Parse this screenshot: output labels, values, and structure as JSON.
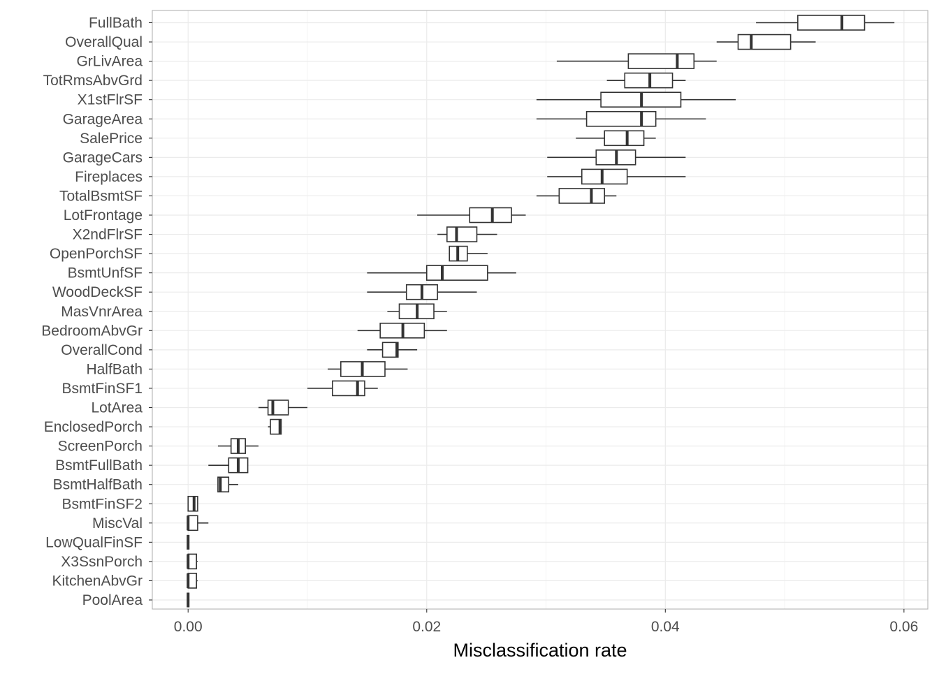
{
  "chart_data": {
    "type": "boxplot",
    "orientation": "horizontal",
    "xlabel": "Misclassification rate",
    "ylabel": "",
    "title": "",
    "xlim": [
      -0.003,
      0.062
    ],
    "xticks": [
      0.0,
      0.02,
      0.04,
      0.06
    ],
    "xtick_labels": [
      "0.00",
      "0.02",
      "0.04",
      "0.06"
    ],
    "grid": true,
    "legend": "none",
    "colors": {
      "box_stroke": "#333333",
      "grid_major": "#ebebeb",
      "grid_minor": "#f2f2f2",
      "panel_border": "#b3b3b3",
      "tick_label": "#4d4d4d",
      "axis_title": "#000000"
    },
    "categories": [
      "FullBath",
      "OverallQual",
      "GrLivArea",
      "TotRmsAbvGrd",
      "X1stFlrSF",
      "GarageArea",
      "SalePrice",
      "GarageCars",
      "Fireplaces",
      "TotalBsmtSF",
      "LotFrontage",
      "X2ndFlrSF",
      "OpenPorchSF",
      "BsmtUnfSF",
      "WoodDeckSF",
      "MasVnrArea",
      "BedroomAbvGr",
      "OverallCond",
      "HalfBath",
      "BsmtFinSF1",
      "LotArea",
      "EnclosedPorch",
      "ScreenPorch",
      "BsmtFullBath",
      "BsmtHalfBath",
      "BsmtFinSF2",
      "MiscVal",
      "LowQualFinSF",
      "X3SsnPorch",
      "KitchenAbvGr",
      "PoolArea"
    ],
    "boxes": [
      {
        "category": "FullBath",
        "whisker_low": 0.0476,
        "q1": 0.0511,
        "median": 0.0548,
        "q3": 0.0567,
        "whisker_high": 0.0592
      },
      {
        "category": "OverallQual",
        "whisker_low": 0.0443,
        "q1": 0.0461,
        "median": 0.0472,
        "q3": 0.0505,
        "whisker_high": 0.0526
      },
      {
        "category": "GrLivArea",
        "whisker_low": 0.0309,
        "q1": 0.0369,
        "median": 0.041,
        "q3": 0.0424,
        "whisker_high": 0.0443
      },
      {
        "category": "TotRmsAbvGrd",
        "whisker_low": 0.0351,
        "q1": 0.0366,
        "median": 0.0387,
        "q3": 0.0406,
        "whisker_high": 0.0417
      },
      {
        "category": "X1stFlrSF",
        "whisker_low": 0.0292,
        "q1": 0.0346,
        "median": 0.038,
        "q3": 0.0413,
        "whisker_high": 0.0459
      },
      {
        "category": "GarageArea",
        "whisker_low": 0.0292,
        "q1": 0.0334,
        "median": 0.038,
        "q3": 0.0392,
        "whisker_high": 0.0434
      },
      {
        "category": "SalePrice",
        "whisker_low": 0.0325,
        "q1": 0.0349,
        "median": 0.0368,
        "q3": 0.0382,
        "whisker_high": 0.0392
      },
      {
        "category": "GarageCars",
        "whisker_low": 0.0301,
        "q1": 0.0342,
        "median": 0.0359,
        "q3": 0.0375,
        "whisker_high": 0.0417
      },
      {
        "category": "Fireplaces",
        "whisker_low": 0.0301,
        "q1": 0.033,
        "median": 0.0347,
        "q3": 0.0368,
        "whisker_high": 0.0417
      },
      {
        "category": "TotalBsmtSF",
        "whisker_low": 0.0292,
        "q1": 0.0311,
        "median": 0.0338,
        "q3": 0.0349,
        "whisker_high": 0.0359
      },
      {
        "category": "LotFrontage",
        "whisker_low": 0.0192,
        "q1": 0.0236,
        "median": 0.0255,
        "q3": 0.0271,
        "whisker_high": 0.0283
      },
      {
        "category": "X2ndFlrSF",
        "whisker_low": 0.0209,
        "q1": 0.0217,
        "median": 0.0225,
        "q3": 0.0242,
        "whisker_high": 0.0259
      },
      {
        "category": "OpenPorchSF",
        "whisker_low": 0.0219,
        "q1": 0.0219,
        "median": 0.0226,
        "q3": 0.0234,
        "whisker_high": 0.0251
      },
      {
        "category": "BsmtUnfSF",
        "whisker_low": 0.015,
        "q1": 0.02,
        "median": 0.0213,
        "q3": 0.0251,
        "whisker_high": 0.0275
      },
      {
        "category": "WoodDeckSF",
        "whisker_low": 0.015,
        "q1": 0.0183,
        "median": 0.0196,
        "q3": 0.0209,
        "whisker_high": 0.0242
      },
      {
        "category": "MasVnrArea",
        "whisker_low": 0.0167,
        "q1": 0.0177,
        "median": 0.0192,
        "q3": 0.0206,
        "whisker_high": 0.0217
      },
      {
        "category": "BedroomAbvGr",
        "whisker_low": 0.0142,
        "q1": 0.0161,
        "median": 0.018,
        "q3": 0.0198,
        "whisker_high": 0.0217
      },
      {
        "category": "OverallCond",
        "whisker_low": 0.015,
        "q1": 0.0163,
        "median": 0.0175,
        "q3": 0.0176,
        "whisker_high": 0.0192
      },
      {
        "category": "HalfBath",
        "whisker_low": 0.0117,
        "q1": 0.0128,
        "median": 0.0146,
        "q3": 0.0165,
        "whisker_high": 0.0184
      },
      {
        "category": "BsmtFinSF1",
        "whisker_low": 0.01,
        "q1": 0.0121,
        "median": 0.0142,
        "q3": 0.0148,
        "whisker_high": 0.0159
      },
      {
        "category": "LotArea",
        "whisker_low": 0.0059,
        "q1": 0.0067,
        "median": 0.0071,
        "q3": 0.0084,
        "whisker_high": 0.01
      },
      {
        "category": "EnclosedPorch",
        "whisker_low": 0.0067,
        "q1": 0.0069,
        "median": 0.0077,
        "q3": 0.0078,
        "whisker_high": 0.0078
      },
      {
        "category": "ScreenPorch",
        "whisker_low": 0.0025,
        "q1": 0.0036,
        "median": 0.0042,
        "q3": 0.0048,
        "whisker_high": 0.0059
      },
      {
        "category": "BsmtFullBath",
        "whisker_low": 0.0017,
        "q1": 0.0034,
        "median": 0.0042,
        "q3": 0.005,
        "whisker_high": 0.005
      },
      {
        "category": "BsmtHalfBath",
        "whisker_low": 0.0025,
        "q1": 0.0025,
        "median": 0.0027,
        "q3": 0.0034,
        "whisker_high": 0.0042
      },
      {
        "category": "BsmtFinSF2",
        "whisker_low": 0.0,
        "q1": 0.0,
        "median": 0.0005,
        "q3": 0.0008,
        "whisker_high": 0.0008
      },
      {
        "category": "MiscVal",
        "whisker_low": 0.0,
        "q1": 0.0,
        "median": 0.0,
        "q3": 0.0008,
        "whisker_high": 0.0017
      },
      {
        "category": "LowQualFinSF",
        "whisker_low": 0.0,
        "q1": 0.0,
        "median": 0.0,
        "q3": 0.0,
        "whisker_high": 0.0
      },
      {
        "category": "X3SsnPorch",
        "whisker_low": 0.0,
        "q1": 0.0,
        "median": 0.0,
        "q3": 0.0007,
        "whisker_high": 0.0008
      },
      {
        "category": "KitchenAbvGr",
        "whisker_low": 0.0,
        "q1": 0.0,
        "median": 0.0,
        "q3": 0.0007,
        "whisker_high": 0.0008
      },
      {
        "category": "PoolArea",
        "whisker_low": 0.0,
        "q1": 0.0,
        "median": 0.0,
        "q3": 0.0,
        "whisker_high": 0.0
      }
    ]
  }
}
